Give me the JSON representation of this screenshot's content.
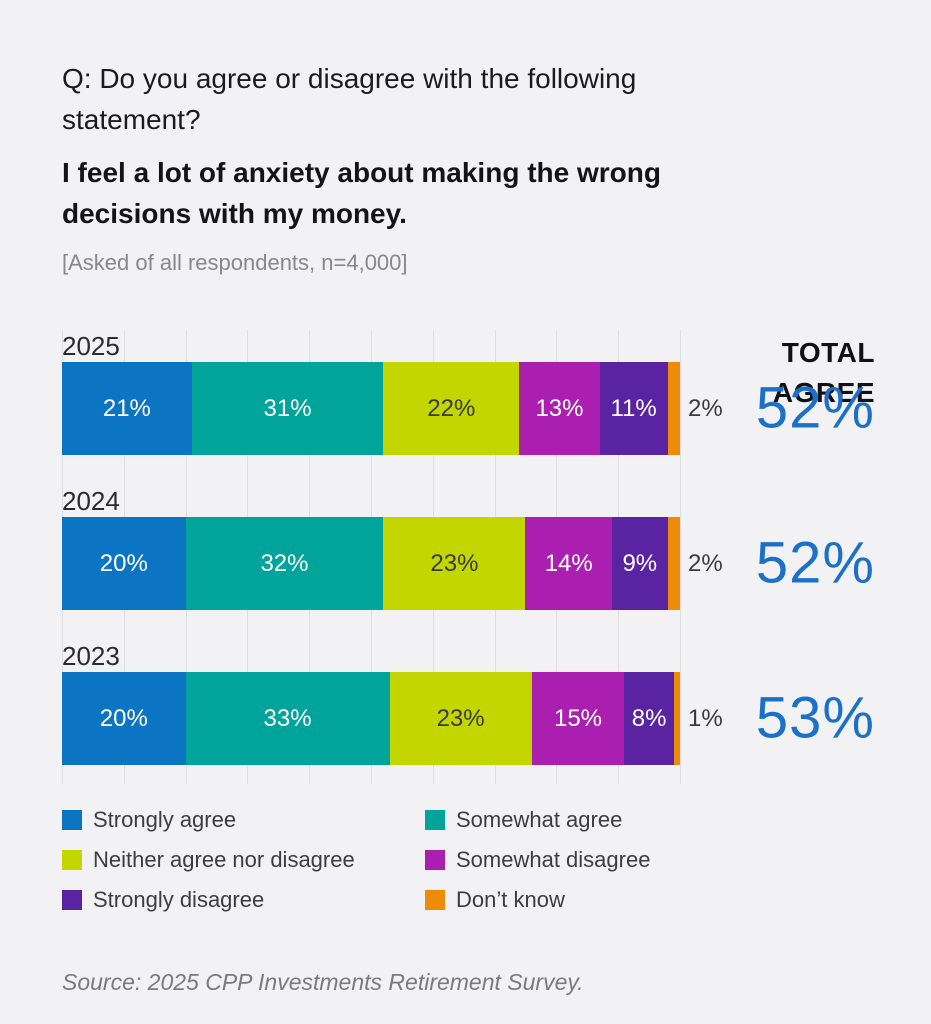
{
  "header": {
    "question_lines": [
      "Q: Do you agree or disagree with the following",
      "statement?"
    ],
    "statement_lines": [
      "I feel a lot of anxiety about making the wrong",
      "decisions with my money."
    ],
    "note": "[Asked of all respondents, n=4,000]",
    "total_agree_lines": [
      "TOTAL",
      "AGREE"
    ]
  },
  "chart_data": {
    "type": "bar",
    "variant": "horizontal-stacked",
    "unit": "percent",
    "title": "I feel a lot of anxiety about making the wrong decisions with my money.",
    "categories": [
      "2025",
      "2024",
      "2023"
    ],
    "series": [
      {
        "name": "Strongly agree",
        "color": "#0b75c4",
        "label_color": "#ffffff",
        "values": [
          21,
          20,
          20
        ]
      },
      {
        "name": "Somewhat agree",
        "color": "#00a49b",
        "label_color": "#ffffff",
        "values": [
          31,
          32,
          33
        ]
      },
      {
        "name": "Neither agree nor disagree",
        "color": "#c4d600",
        "label_color": "#3a3a3c",
        "values": [
          22,
          23,
          23
        ]
      },
      {
        "name": "Somewhat disagree",
        "color": "#ab1fb0",
        "label_color": "#ffffff",
        "values": [
          13,
          14,
          15
        ]
      },
      {
        "name": "Strongly disagree",
        "color": "#5a23a2",
        "label_color": "#ffffff",
        "values": [
          11,
          9,
          8
        ]
      },
      {
        "name": "Don’t know",
        "color": "#ee8c0a",
        "label_color": "#3a3a3c",
        "label_outside": true,
        "values": [
          2,
          2,
          1
        ]
      }
    ],
    "totals": {
      "label": "TOTAL AGREE",
      "values": [
        52,
        52,
        53
      ],
      "color": "#1d70c8"
    },
    "xlim": [
      0,
      100
    ],
    "gridline_interval": 10,
    "grid": true,
    "legend_position": "bottom"
  },
  "source": "Source: 2025 CPP Investments Retirement Survey.",
  "colors": {
    "background": "#f2f2f4",
    "gridline": "#dedee0",
    "accent_blue": "#1d70c8"
  }
}
